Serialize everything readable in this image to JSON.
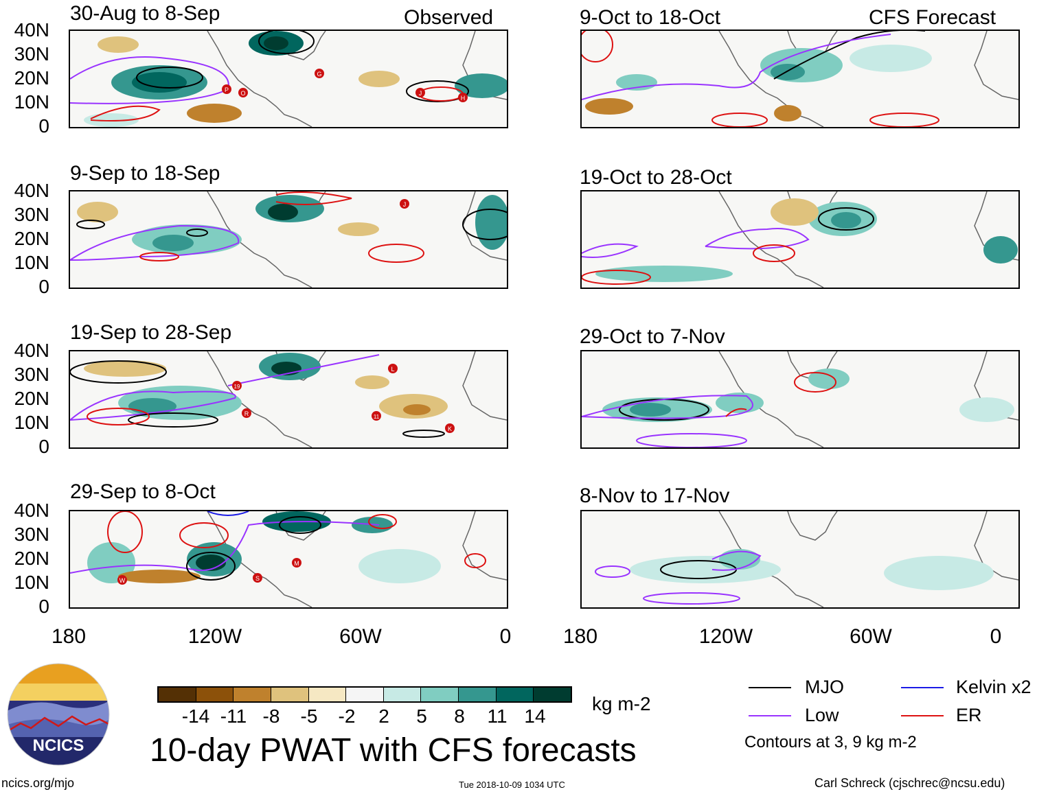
{
  "panels": {
    "left": [
      {
        "title": "30-Aug to 8-Sep",
        "tag": "Observed"
      },
      {
        "title": "9-Sep to 18-Sep",
        "tag": ""
      },
      {
        "title": "19-Sep to 28-Sep",
        "tag": ""
      },
      {
        "title": "29-Sep to 8-Oct",
        "tag": ""
      }
    ],
    "right": [
      {
        "title": "9-Oct to 18-Oct",
        "tag": "CFS Forecast"
      },
      {
        "title": "19-Oct to 28-Oct",
        "tag": ""
      },
      {
        "title": "29-Oct to 7-Nov",
        "tag": ""
      },
      {
        "title": "8-Nov to 17-Nov",
        "tag": ""
      }
    ]
  },
  "axes": {
    "y_labels": [
      "40N",
      "30N",
      "20N",
      "10N",
      "0"
    ],
    "x_labels": [
      "180",
      "120W",
      "60W",
      "0"
    ]
  },
  "storm_markers": {
    "p0": [
      "P",
      "O",
      "G",
      "J",
      "H"
    ],
    "p1": [
      "J"
    ],
    "p2": [
      "L",
      "19",
      "R",
      "11",
      "K"
    ],
    "p3": [
      "M",
      "W",
      "S"
    ]
  },
  "colorbar": {
    "labels": [
      "-14",
      "-11",
      "-8",
      "-5",
      "-2",
      "2",
      "5",
      "8",
      "11",
      "14"
    ],
    "colors": [
      "#543005",
      "#8c510a",
      "#bf812d",
      "#dfc27d",
      "#f6e8c3",
      "#f5f5f5",
      "#c7eae5",
      "#80cdc1",
      "#35978f",
      "#01665e",
      "#003c30"
    ],
    "units": "kg m-2"
  },
  "legend": {
    "items": [
      {
        "label": "MJO",
        "color": "#000000"
      },
      {
        "label": "Kelvin x2",
        "color": "#1a1ae6"
      },
      {
        "label": "Low",
        "color": "#9933ff"
      },
      {
        "label": "ER",
        "color": "#dd1111"
      }
    ],
    "note": "Contours at 3, 9 kg m-2"
  },
  "title": "10-day PWAT with CFS forecasts",
  "logo_text": "NCICS",
  "footer": {
    "url": "ncics.org/mjo",
    "timestamp": "Tue 2018-10-09 1034 UTC",
    "author": "Carl Schreck (cjschrec@ncsu.edu)"
  }
}
